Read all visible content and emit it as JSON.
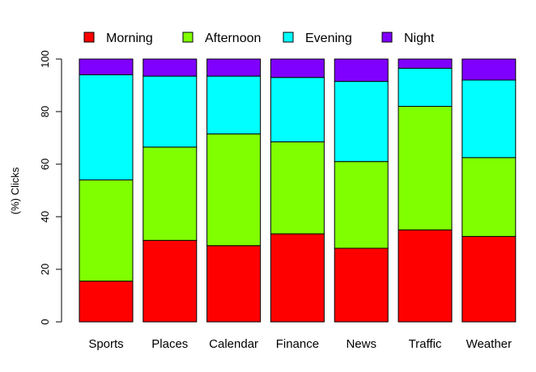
{
  "chart_data": {
    "type": "bar",
    "stacked": true,
    "ylabel": "(%) Clicks",
    "xlabel": "",
    "ylim": [
      0,
      100
    ],
    "yticks": [
      0,
      20,
      40,
      60,
      80,
      100
    ],
    "grid": false,
    "legend_position": "top",
    "categories": [
      "Sports",
      "Places",
      "Calendar",
      "Finance",
      "News",
      "Traffic",
      "Weather"
    ],
    "series": [
      {
        "name": "Morning",
        "color": "#ff0000",
        "values": [
          15.5,
          31.0,
          29.0,
          33.5,
          28.0,
          35.0,
          32.5
        ]
      },
      {
        "name": "Afternoon",
        "color": "#80ff00",
        "values": [
          38.5,
          35.5,
          42.5,
          35.0,
          33.0,
          47.0,
          30.0
        ]
      },
      {
        "name": "Evening",
        "color": "#00ffff",
        "values": [
          40.0,
          27.0,
          22.0,
          24.5,
          30.5,
          14.5,
          29.5
        ]
      },
      {
        "name": "Night",
        "color": "#8000ff",
        "values": [
          6.0,
          6.5,
          6.5,
          7.0,
          8.5,
          3.5,
          8.0
        ]
      }
    ]
  }
}
